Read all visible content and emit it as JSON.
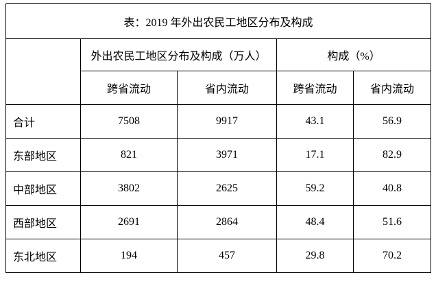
{
  "title": "表：2019 年外出农民工地区分布及构成",
  "table": {
    "group_headers": [
      "外出农民工地区分布及构成（万人）",
      "构成（%）"
    ],
    "sub_headers": [
      "跨省流动",
      "省内流动",
      "跨省流动",
      "省内流动"
    ],
    "rows": [
      [
        "合计",
        7508,
        9917,
        43.1,
        56.9
      ],
      [
        "东部地区",
        821,
        3971,
        17.1,
        82.9
      ],
      [
        "中部地区",
        3802,
        2625,
        59.2,
        40.8
      ],
      [
        "西部地区",
        2691,
        2864,
        48.4,
        51.6
      ],
      [
        "东北地区",
        194,
        457,
        29.8,
        70.2
      ]
    ]
  }
}
